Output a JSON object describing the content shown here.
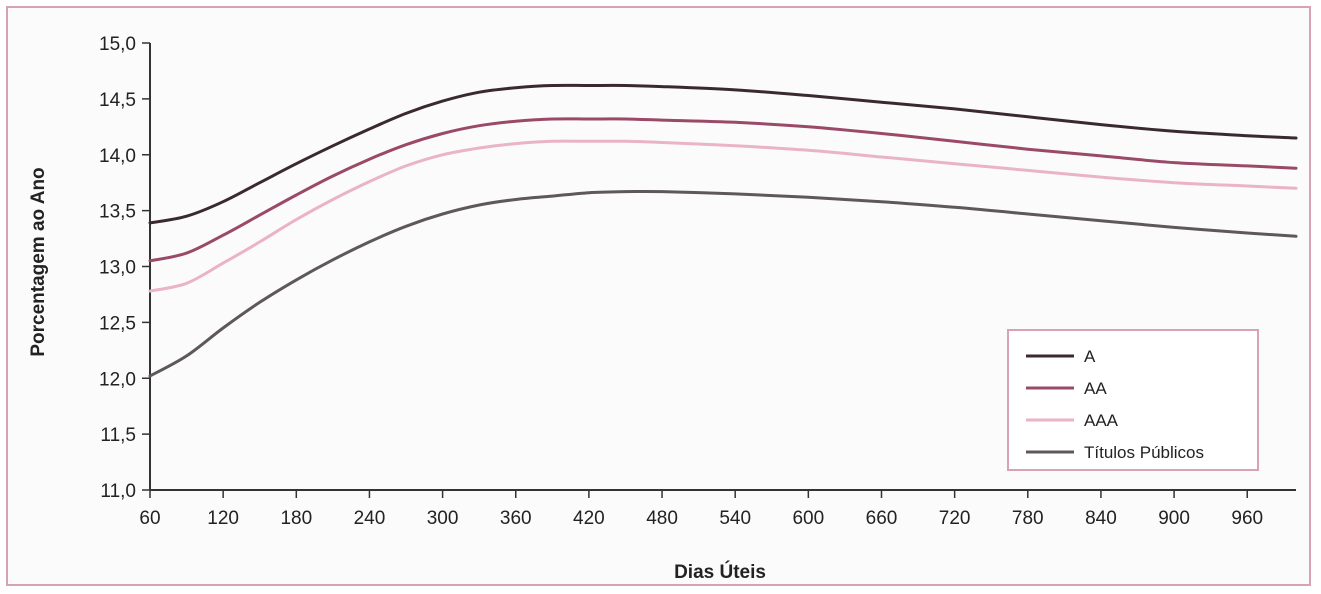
{
  "chart_data": {
    "type": "line",
    "title": "",
    "xlabel": "Dias Úteis",
    "ylabel": "Porcentagem ao Ano",
    "xlim": [
      60,
      1000
    ],
    "ylim": [
      11.0,
      15.0
    ],
    "xticks": [
      60,
      120,
      180,
      240,
      300,
      360,
      420,
      480,
      540,
      600,
      660,
      720,
      780,
      840,
      900,
      960
    ],
    "xtick_labels": [
      "60",
      "120",
      "180",
      "240",
      "300",
      "360",
      "420",
      "480",
      "540",
      "600",
      "660",
      "720",
      "780",
      "840",
      "900",
      "960"
    ],
    "yticks": [
      11.0,
      11.5,
      12.0,
      12.5,
      13.0,
      13.5,
      14.0,
      14.5,
      15.0
    ],
    "ytick_labels": [
      "11,0",
      "11,5",
      "12,0",
      "12,5",
      "13,0",
      "13,5",
      "14,0",
      "14,5",
      "15,0"
    ],
    "grid": false,
    "legend_position": "right",
    "x": [
      60,
      90,
      120,
      150,
      180,
      210,
      240,
      270,
      300,
      330,
      360,
      390,
      420,
      450,
      480,
      540,
      600,
      660,
      720,
      780,
      840,
      900,
      960,
      1000
    ],
    "series": [
      {
        "name": "A",
        "color": "#3a2a30",
        "values": [
          13.39,
          13.45,
          13.58,
          13.75,
          13.92,
          14.08,
          14.23,
          14.37,
          14.48,
          14.56,
          14.6,
          14.62,
          14.62,
          14.62,
          14.61,
          14.58,
          14.53,
          14.47,
          14.41,
          14.34,
          14.27,
          14.21,
          14.17,
          14.15
        ]
      },
      {
        "name": "AA",
        "color": "#9a4a68",
        "values": [
          13.05,
          13.12,
          13.28,
          13.46,
          13.64,
          13.81,
          13.96,
          14.09,
          14.19,
          14.26,
          14.3,
          14.32,
          14.32,
          14.32,
          14.31,
          14.29,
          14.25,
          14.19,
          14.12,
          14.05,
          13.99,
          13.93,
          13.9,
          13.88
        ]
      },
      {
        "name": "AAA",
        "color": "#eab3c7",
        "values": [
          12.78,
          12.85,
          13.03,
          13.22,
          13.42,
          13.6,
          13.76,
          13.9,
          14.0,
          14.06,
          14.1,
          14.12,
          14.12,
          14.12,
          14.11,
          14.08,
          14.04,
          13.98,
          13.92,
          13.86,
          13.8,
          13.75,
          13.72,
          13.7
        ]
      },
      {
        "name": "Títulos Públicos",
        "color": "#5e5858",
        "values": [
          12.02,
          12.2,
          12.45,
          12.68,
          12.88,
          13.06,
          13.22,
          13.36,
          13.47,
          13.55,
          13.6,
          13.63,
          13.66,
          13.67,
          13.67,
          13.65,
          13.62,
          13.58,
          13.53,
          13.47,
          13.41,
          13.35,
          13.3,
          13.27
        ]
      }
    ]
  }
}
